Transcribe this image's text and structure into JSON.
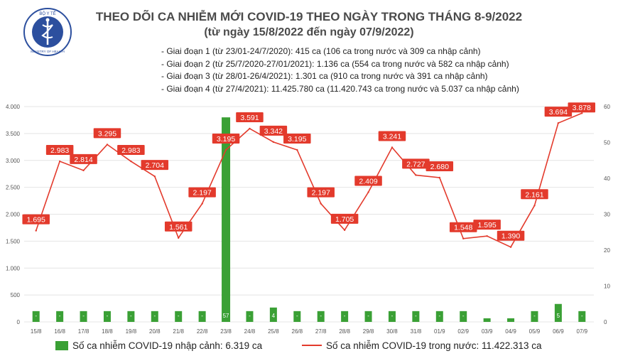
{
  "header": {
    "logo_text_top": "BỘ Y TẾ",
    "logo_text_bottom": "MINISTRY OF HEALTH",
    "title": "THEO DÕI CA NHIỄM MỚI COVID-19 THEO NGÀY TRONG THÁNG 8-9/2022",
    "subtitle": "(từ ngày 15/8/2022 đến ngày 07/9/2022)"
  },
  "notes": [
    "- Giai đoạn 1 (từ 23/01-24/7/2020): 415 ca (106 ca trong nước và 309 ca nhập cảnh)",
    "- Giai đoạn 2 (từ 25/7/2020-27/01/2021): 1.136 ca (554 ca trong nước và 582 ca nhập cảnh)",
    "- Giai đoạn 3 (từ 28/01-26/4/2021): 1.301 ca (910 ca trong nước và 391 ca nhập cảnh)",
    "- Giai đoạn 4 (từ 27/4/2021): 11.425.780 ca (11.420.743 ca trong nước và 5.037 ca nhập cảnh)"
  ],
  "legend": {
    "imported": "Số ca nhiễm COVID-19 nhập cảnh: 6.319 ca",
    "domestic": "Số ca nhiễm COVID-19 trong nước: 11.422.313 ca"
  },
  "colors": {
    "bar": "#3aa035",
    "line": "#e33a2c",
    "label_bg": "#e33a2c"
  },
  "chart_data": {
    "type": "bar+line",
    "categories": [
      "15/8",
      "16/8",
      "17/8",
      "18/8",
      "19/8",
      "20/8",
      "21/8",
      "22/8",
      "23/8",
      "24/8",
      "25/8",
      "26/8",
      "27/8",
      "28/8",
      "29/8",
      "30/8",
      "31/8",
      "01/9",
      "02/9",
      "03/9",
      "04/9",
      "05/9",
      "06/9",
      "07/9"
    ],
    "y_left": {
      "min": 0,
      "max": 4000,
      "ticks": [
        0,
        500,
        1000,
        1500,
        2000,
        2500,
        3000,
        3500,
        4000
      ],
      "tick_labels": [
        "0",
        "500",
        "1.000",
        "1.500",
        "2.000",
        "2.500",
        "3.000",
        "3.500",
        "4.000"
      ]
    },
    "y_right": {
      "min": 0,
      "max": 60,
      "ticks": [
        0,
        10,
        20,
        30,
        40,
        50,
        60
      ],
      "tick_labels": [
        "0",
        "10",
        "20",
        "30",
        "40",
        "50",
        "60"
      ]
    },
    "series": [
      {
        "name": "Số ca nhiễm COVID-19 nhập cảnh",
        "type": "bar",
        "axis": "right",
        "values": [
          3,
          3,
          3,
          3,
          3,
          3,
          3,
          3,
          57,
          3,
          4,
          3,
          3,
          3,
          3,
          3,
          3,
          3,
          3,
          1,
          1,
          3,
          5,
          3
        ],
        "labels": [
          "-",
          "-",
          "-",
          "-",
          "-",
          "-",
          "-",
          "-",
          "57",
          "-",
          "4",
          "-",
          "-",
          "-",
          "-",
          "-",
          "-",
          "-",
          "-",
          "1",
          "1",
          "-",
          "5",
          "-"
        ]
      },
      {
        "name": "Số ca nhiễm COVID-19 trong nước",
        "type": "line",
        "axis": "left",
        "values": [
          1695,
          2983,
          2814,
          3295,
          2983,
          2704,
          1561,
          2197,
          3195,
          3591,
          3342,
          3195,
          2197,
          1705,
          2409,
          3241,
          2727,
          2680,
          1548,
          1595,
          1390,
          2161,
          3694,
          3878
        ],
        "labels": [
          "1.695",
          "2.983",
          "2.814",
          "3.295",
          "2.983",
          "2.704",
          "1.561",
          "2.197",
          "3.195",
          "3.591",
          "3.342",
          "3.195",
          "2.197",
          "1.705",
          "2.409",
          "3.241",
          "2.727",
          "2.680",
          "1.548",
          "1.595",
          "1.390",
          "2.161",
          "3.694",
          "3.878"
        ]
      }
    ]
  }
}
